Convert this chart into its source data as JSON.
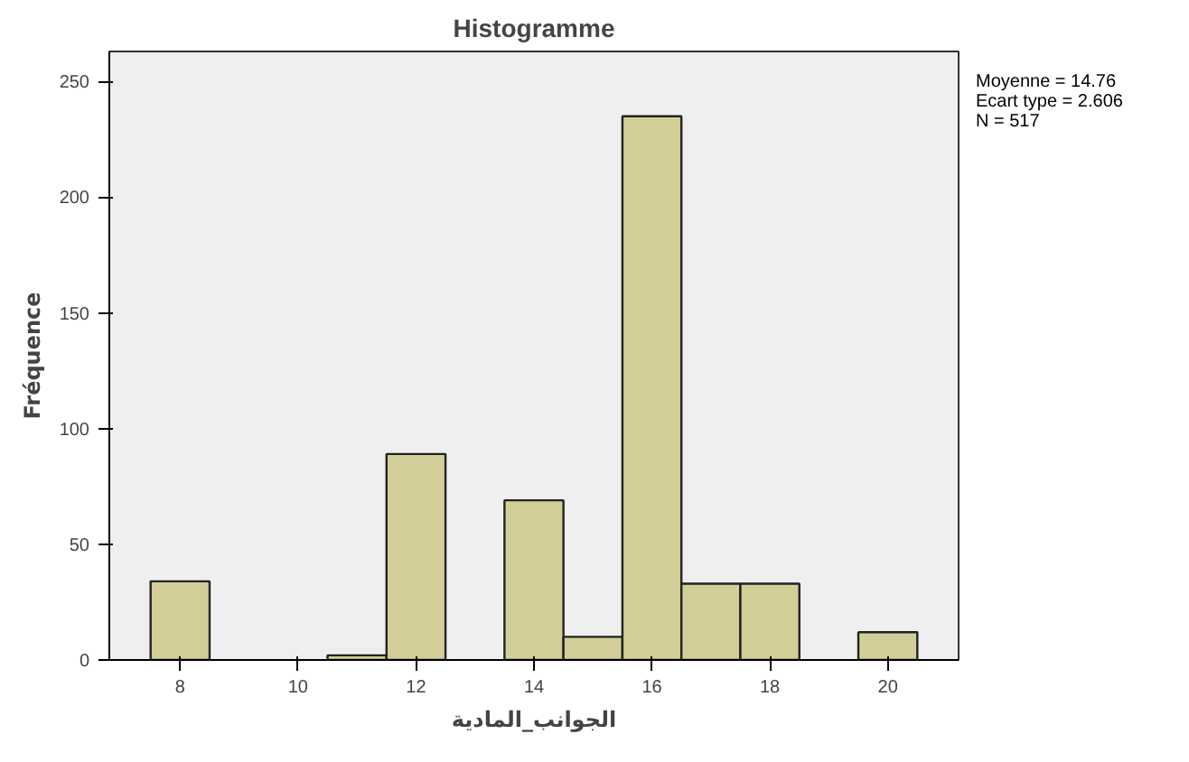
{
  "chart_data": {
    "type": "histogram",
    "title": "Histogramme",
    "xlabel": "الجوانب_المادية",
    "ylabel": "Fréquence",
    "bins": [
      7.5,
      8.5,
      9.5,
      10.5,
      11.5,
      12.5,
      13.5,
      14.5,
      15.5,
      16.5,
      17.5,
      18.5,
      19.5,
      20.5
    ],
    "values": [
      34,
      null,
      null,
      2,
      89,
      null,
      69,
      10,
      235,
      33,
      33,
      null,
      12
    ],
    "color": "#d3ce98",
    "xlim": [
      6.8,
      21.2
    ],
    "xticks": [
      8,
      10,
      12,
      14,
      16,
      18,
      20
    ],
    "ylim": [
      0,
      263
    ],
    "yticks": [
      0,
      50,
      100,
      150,
      200,
      250
    ],
    "grid": false,
    "annotations": [
      "Moyenne = 14.76",
      "Ecart type = 2.606",
      "N = 517"
    ]
  }
}
